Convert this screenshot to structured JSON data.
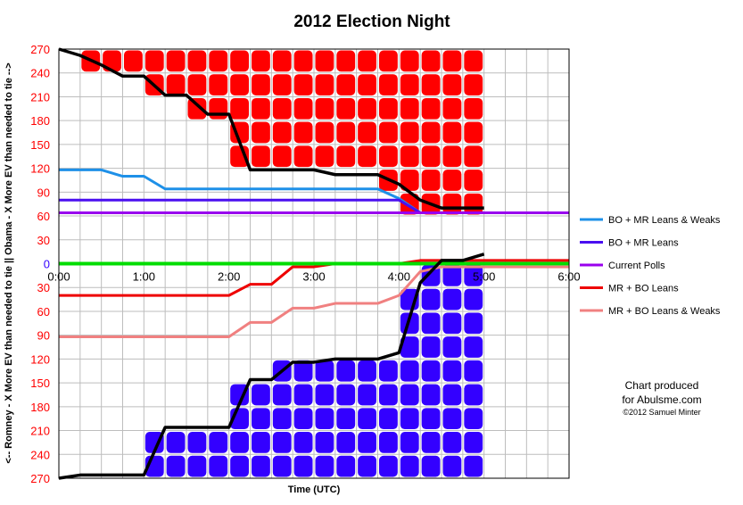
{
  "chart_data": {
    "type": "line",
    "title": "2012 Election Night",
    "xlabel": "Time (UTC)",
    "ylabel": "<-- Romney - X More EV than needed to tie ||  Obama - X More EV than needed to tie -->",
    "xlim": [
      0,
      6
    ],
    "x_tick_labels": [
      "0:00",
      "1:00",
      "2:00",
      "3:00",
      "4:00",
      "5:00",
      "6:00"
    ],
    "ylim": [
      -270,
      270
    ],
    "y_tick_labels_top": [
      "270",
      "240",
      "210",
      "180",
      "150",
      "120",
      "90",
      "60",
      "30"
    ],
    "y_tick_labels_bottom": [
      "30",
      "60",
      "90",
      "120",
      "150",
      "180",
      "210",
      "240",
      "270"
    ],
    "y_zero_label": "0",
    "grid": true,
    "legend_placement": "right",
    "colors": {
      "red_fill": "#ff0000",
      "blue_fill": "#3300ff",
      "bo_mr_leans_weaks": "#1e90e8",
      "bo_mr_leans": "#4a0ff0",
      "current_polls": "#9900ee",
      "mr_bo_leans": "#ee0000",
      "mr_bo_leans_weaks": "#f08080",
      "tie_line": "#00dd00",
      "called_line": "#000000"
    },
    "series": [
      {
        "name": "BO + MR Leans & Weaks",
        "color": "#1e90e8",
        "x": [
          0,
          0.5,
          0.75,
          1.0,
          1.25,
          1.5,
          2.0,
          2.5,
          3.0,
          3.5,
          3.75,
          4.0,
          4.25,
          6.0
        ],
        "y": [
          118,
          118,
          110,
          110,
          94,
          94,
          94,
          94,
          94,
          94,
          94,
          82,
          64,
          64
        ]
      },
      {
        "name": "BO + MR Leans",
        "color": "#4a0ff0",
        "x": [
          0,
          4.0,
          4.25,
          6.0
        ],
        "y": [
          80,
          80,
          64,
          64
        ]
      },
      {
        "name": "Current Polls",
        "color": "#9900ee",
        "x": [
          0,
          6.0
        ],
        "y": [
          64,
          64
        ]
      },
      {
        "name": "MR + BO Leans",
        "color": "#ee0000",
        "x": [
          0,
          2.0,
          2.25,
          2.5,
          2.75,
          3.0,
          3.25,
          4.0,
          4.25,
          4.5,
          6.0
        ],
        "y": [
          -40,
          -40,
          -26,
          -26,
          -4,
          -4,
          0,
          0,
          4,
          4,
          4
        ]
      },
      {
        "name": "MR + BO Leans & Weaks",
        "color": "#f08080",
        "x": [
          0,
          2.0,
          2.25,
          2.5,
          2.75,
          3.0,
          3.25,
          3.75,
          4.0,
          4.25,
          4.5,
          6.0
        ],
        "y": [
          -92,
          -92,
          -74,
          -74,
          -56,
          -56,
          -50,
          -50,
          -40,
          -10,
          -4,
          -4
        ]
      }
    ],
    "called_romney": {
      "x": [
        0,
        0.25,
        0.5,
        0.75,
        1.0,
        1.25,
        1.5,
        1.75,
        2.0,
        2.25,
        2.5,
        2.75,
        3.0,
        3.25,
        3.5,
        3.75,
        4.0,
        4.25,
        4.5,
        4.75,
        5.0
      ],
      "y": [
        270,
        262,
        250,
        236,
        236,
        212,
        212,
        188,
        188,
        118,
        118,
        118,
        118,
        112,
        112,
        112,
        100,
        80,
        70,
        70,
        70
      ]
    },
    "called_obama": {
      "x": [
        0,
        0.25,
        0.5,
        0.75,
        1.0,
        1.25,
        1.5,
        1.75,
        2.0,
        2.25,
        2.5,
        2.75,
        3.0,
        3.25,
        3.5,
        3.75,
        4.0,
        4.25,
        4.5,
        4.75,
        5.0
      ],
      "y": [
        -270,
        -266,
        -266,
        -266,
        -266,
        -206,
        -206,
        -206,
        -206,
        -146,
        -146,
        -124,
        -124,
        -120,
        -120,
        -120,
        -112,
        -24,
        4,
        4,
        12
      ]
    }
  },
  "legend": [
    {
      "label": "BO + MR Leans & Weaks",
      "color": "#1e90e8"
    },
    {
      "label": "BO + MR Leans",
      "color": "#4a0ff0"
    },
    {
      "label": "Current Polls",
      "color": "#9900ee"
    },
    {
      "label": "MR + BO Leans",
      "color": "#ee0000"
    },
    {
      "label": "MR + BO Leans & Weaks",
      "color": "#f08080"
    }
  ],
  "credit": {
    "line1": "Chart produced",
    "line2": "for Abulsme.com",
    "line3": "©2012 Samuel Minter"
  }
}
